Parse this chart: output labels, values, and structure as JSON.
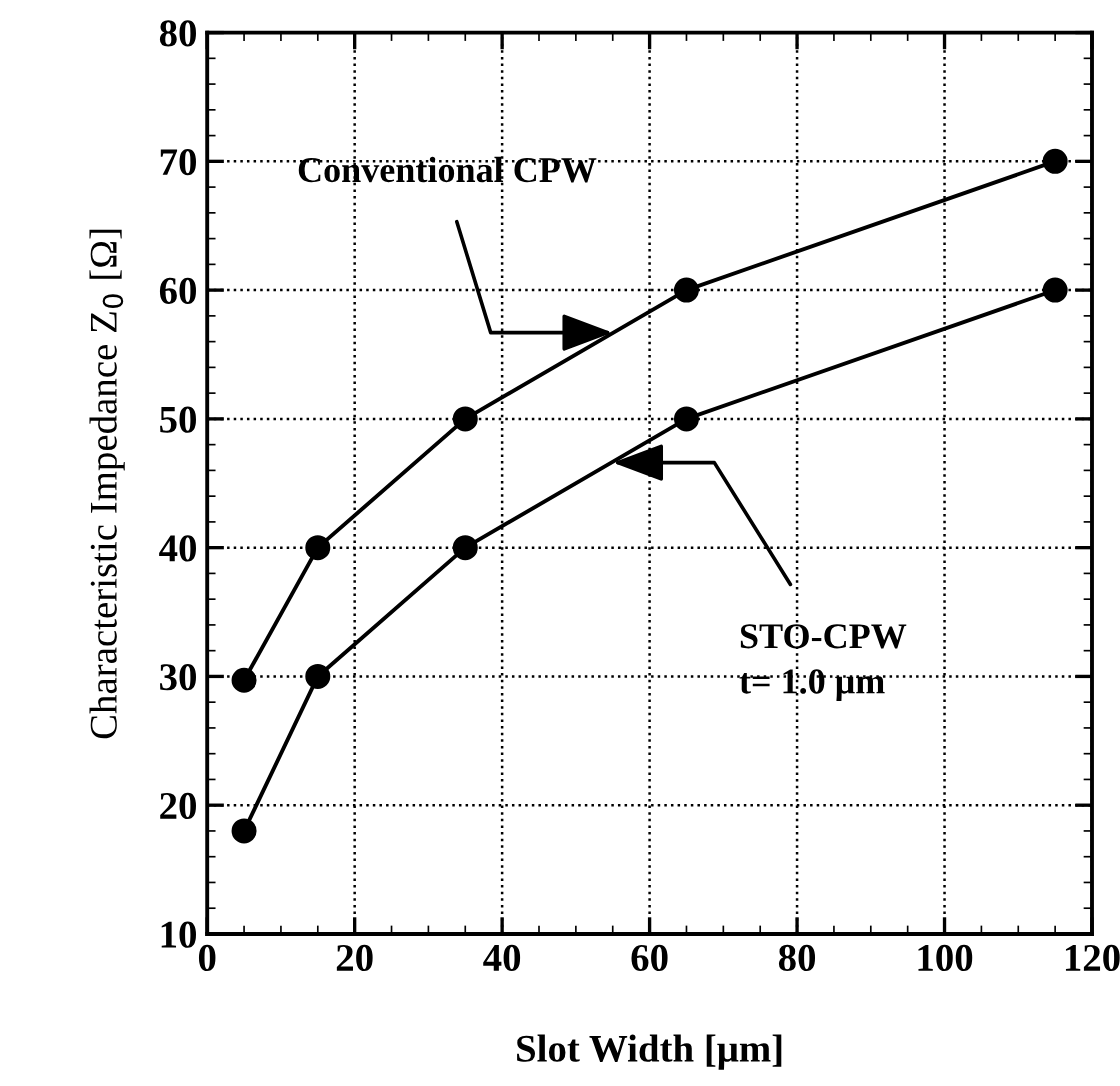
{
  "chart_data": {
    "type": "line",
    "xlabel": "Slot Width [μm]",
    "ylabel": "Characteristic Impedance Z$_{0}$ [Ω]",
    "xlim": [
      0,
      120
    ],
    "xticks": [
      0,
      20,
      40,
      60,
      80,
      100,
      120
    ],
    "ylim": [
      10,
      80
    ],
    "yticks": [
      10,
      20,
      30,
      40,
      50,
      60,
      70,
      80
    ],
    "grid": true,
    "marker": "circle",
    "line_style": "solid",
    "series": [
      {
        "color": "#000000",
        "x": [
          5,
          15,
          35,
          65,
          115
        ],
        "values": [
          29.7,
          40,
          50,
          60,
          70
        ]
      },
      {
        "color": "#000000",
        "x": [
          5,
          15,
          35,
          65,
          115
        ],
        "values": [
          18,
          30,
          40,
          50,
          60
        ]
      }
    ],
    "annotations": [
      {
        "text": "Conventional CPW",
        "x": 55,
        "y": 56.7
      },
      {
        "text": "STO-CPW\nt= 1.0 μm",
        "x": 55,
        "y": 46.6
      }
    ]
  }
}
